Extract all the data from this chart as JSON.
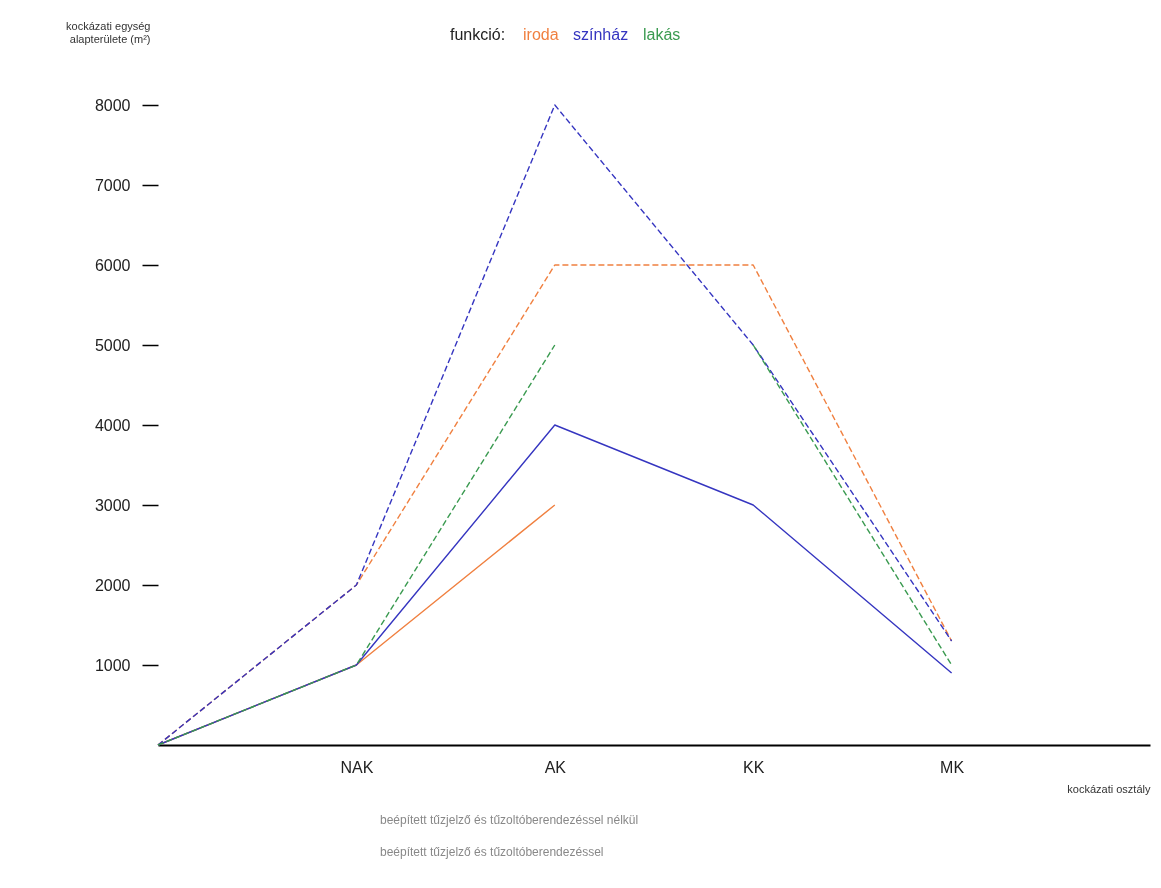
{
  "chart_data": {
    "type": "line",
    "legend_title": "funkció:",
    "legend": "top",
    "xlabel": "kockázati osztály",
    "ylabel": "kockázati egység alapterülete (m²)",
    "categories": [
      null,
      "NAK",
      "AK",
      "KK",
      "MK"
    ],
    "ylim": [
      0,
      8000
    ],
    "yticks": [
      1000,
      2000,
      3000,
      4000,
      5000,
      6000,
      7000,
      8000
    ],
    "series": [
      {
        "name": "iroda",
        "color": "#f08040",
        "line_style": "dashed",
        "values": [
          0,
          2000,
          6000,
          6000,
          1300
        ]
      },
      {
        "color": "#f08040",
        "line_style": "solid",
        "values": [
          0,
          1000,
          3000,
          null,
          null
        ]
      },
      {
        "name": "színház",
        "color": "#3535c0",
        "line_style": "dashed",
        "values": [
          0,
          2000,
          8000,
          5000,
          1300
        ]
      },
      {
        "color": "#3535c0",
        "line_style": "solid",
        "values": [
          0,
          1000,
          4000,
          3000,
          900
        ]
      },
      {
        "name": "lakás",
        "color": "#3a9a50",
        "line_style": "dashed",
        "values": [
          0,
          1000,
          5000,
          null,
          null
        ]
      },
      {
        "color": "#3a9a50",
        "line_style": "dashed",
        "values": [
          null,
          null,
          null,
          5000,
          1000
        ]
      }
    ],
    "annotations": [
      "beépített tűzjelző és tűzoltóberendezéssel nélkül",
      "beépített tűzjelző és tűzoltóberendezéssel"
    ]
  }
}
